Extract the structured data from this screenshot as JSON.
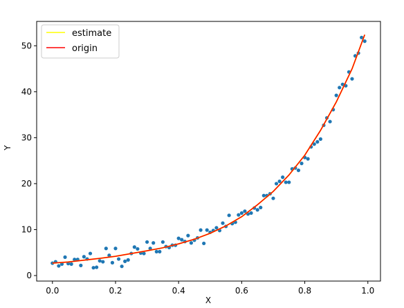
{
  "chart_data": {
    "type": "scatter",
    "xlabel": "X",
    "ylabel": "Y",
    "xlim": [
      -0.05,
      1.04
    ],
    "ylim": [
      -1.2,
      55.3
    ],
    "xticks": [
      0.0,
      0.2,
      0.4,
      0.6,
      0.8,
      1.0
    ],
    "xtick_labels": [
      "0.0",
      "0.2",
      "0.4",
      "0.6",
      "0.8",
      "1.0"
    ],
    "yticks": [
      0,
      10,
      20,
      30,
      40,
      50
    ],
    "ytick_labels": [
      "0",
      "10",
      "20",
      "30",
      "40",
      "50"
    ],
    "grid": false,
    "legend_position": "top-left",
    "colors": {
      "points": "#1f77b4",
      "estimate": "#ffff00",
      "origin": "#ff0000"
    },
    "points": {
      "x": [
        0.0,
        0.01,
        0.02,
        0.03,
        0.04,
        0.05,
        0.06,
        0.07,
        0.08,
        0.09,
        0.1,
        0.11,
        0.12,
        0.13,
        0.14,
        0.15,
        0.16,
        0.17,
        0.18,
        0.19,
        0.2,
        0.21,
        0.22,
        0.23,
        0.24,
        0.25,
        0.26,
        0.27,
        0.28,
        0.29,
        0.3,
        0.31,
        0.32,
        0.33,
        0.34,
        0.35,
        0.36,
        0.37,
        0.38,
        0.39,
        0.4,
        0.41,
        0.42,
        0.43,
        0.44,
        0.45,
        0.46,
        0.47,
        0.48,
        0.49,
        0.5,
        0.51,
        0.52,
        0.53,
        0.54,
        0.55,
        0.56,
        0.57,
        0.58,
        0.59,
        0.6,
        0.61,
        0.62,
        0.63,
        0.64,
        0.65,
        0.66,
        0.67,
        0.68,
        0.69,
        0.7,
        0.71,
        0.72,
        0.73,
        0.74,
        0.75,
        0.76,
        0.77,
        0.78,
        0.79,
        0.8,
        0.81,
        0.82,
        0.83,
        0.84,
        0.85,
        0.86,
        0.87,
        0.88,
        0.89,
        0.9,
        0.91,
        0.92,
        0.93,
        0.94,
        0.95,
        0.96,
        0.97,
        0.98,
        0.99
      ],
      "y": [
        2.7,
        3.0,
        2.1,
        2.5,
        4.0,
        2.6,
        2.5,
        3.5,
        3.5,
        2.2,
        4.1,
        3.6,
        4.8,
        1.7,
        1.8,
        3.2,
        3.0,
        5.9,
        4.4,
        2.8,
        5.9,
        3.6,
        2.0,
        3.1,
        3.4,
        4.8,
        6.2,
        5.8,
        4.9,
        4.8,
        7.3,
        5.9,
        7.1,
        5.2,
        5.2,
        7.3,
        6.3,
        6.1,
        6.6,
        6.6,
        8.1,
        7.8,
        7.4,
        8.7,
        7.1,
        7.7,
        8.2,
        9.9,
        7.0,
        9.9,
        9.4,
        9.8,
        10.4,
        9.8,
        11.4,
        10.7,
        13.1,
        11.3,
        11.6,
        13.2,
        13.6,
        14.0,
        13.4,
        13.6,
        14.7,
        14.3,
        14.8,
        17.4,
        17.4,
        17.8,
        16.8,
        20.0,
        20.5,
        21.4,
        20.3,
        20.3,
        23.2,
        23.4,
        22.9,
        24.4,
        25.7,
        25.4,
        28.0,
        28.6,
        29.1,
        29.7,
        32.7,
        34.3,
        33.5,
        36.1,
        39.2,
        40.9,
        41.6,
        41.3,
        44.3,
        42.8,
        47.8,
        48.4,
        51.8,
        51.0
      ]
    },
    "series": [
      {
        "name": "estimate",
        "x": [
          0.0,
          0.05,
          0.1,
          0.15,
          0.2,
          0.25,
          0.3,
          0.35,
          0.4,
          0.45,
          0.5,
          0.55,
          0.6,
          0.65,
          0.7,
          0.75,
          0.8,
          0.85,
          0.9,
          0.95,
          0.99
        ],
        "y": [
          2.7,
          2.95,
          3.35,
          3.75,
          4.2,
          4.8,
          5.4,
          6.05,
          6.9,
          7.9,
          9.2,
          10.8,
          12.8,
          15.4,
          18.3,
          21.9,
          26.2,
          31.6,
          37.8,
          45.0,
          52.4
        ]
      },
      {
        "name": "origin",
        "x": [
          0.0,
          0.05,
          0.1,
          0.15,
          0.2,
          0.25,
          0.3,
          0.35,
          0.4,
          0.45,
          0.5,
          0.55,
          0.6,
          0.65,
          0.7,
          0.75,
          0.8,
          0.85,
          0.9,
          0.95,
          0.99
        ],
        "y": [
          2.7,
          2.95,
          3.35,
          3.75,
          4.2,
          4.8,
          5.4,
          6.05,
          6.9,
          7.9,
          9.2,
          10.8,
          12.8,
          15.4,
          18.3,
          21.9,
          26.2,
          31.6,
          37.8,
          45.0,
          52.4
        ]
      }
    ]
  }
}
